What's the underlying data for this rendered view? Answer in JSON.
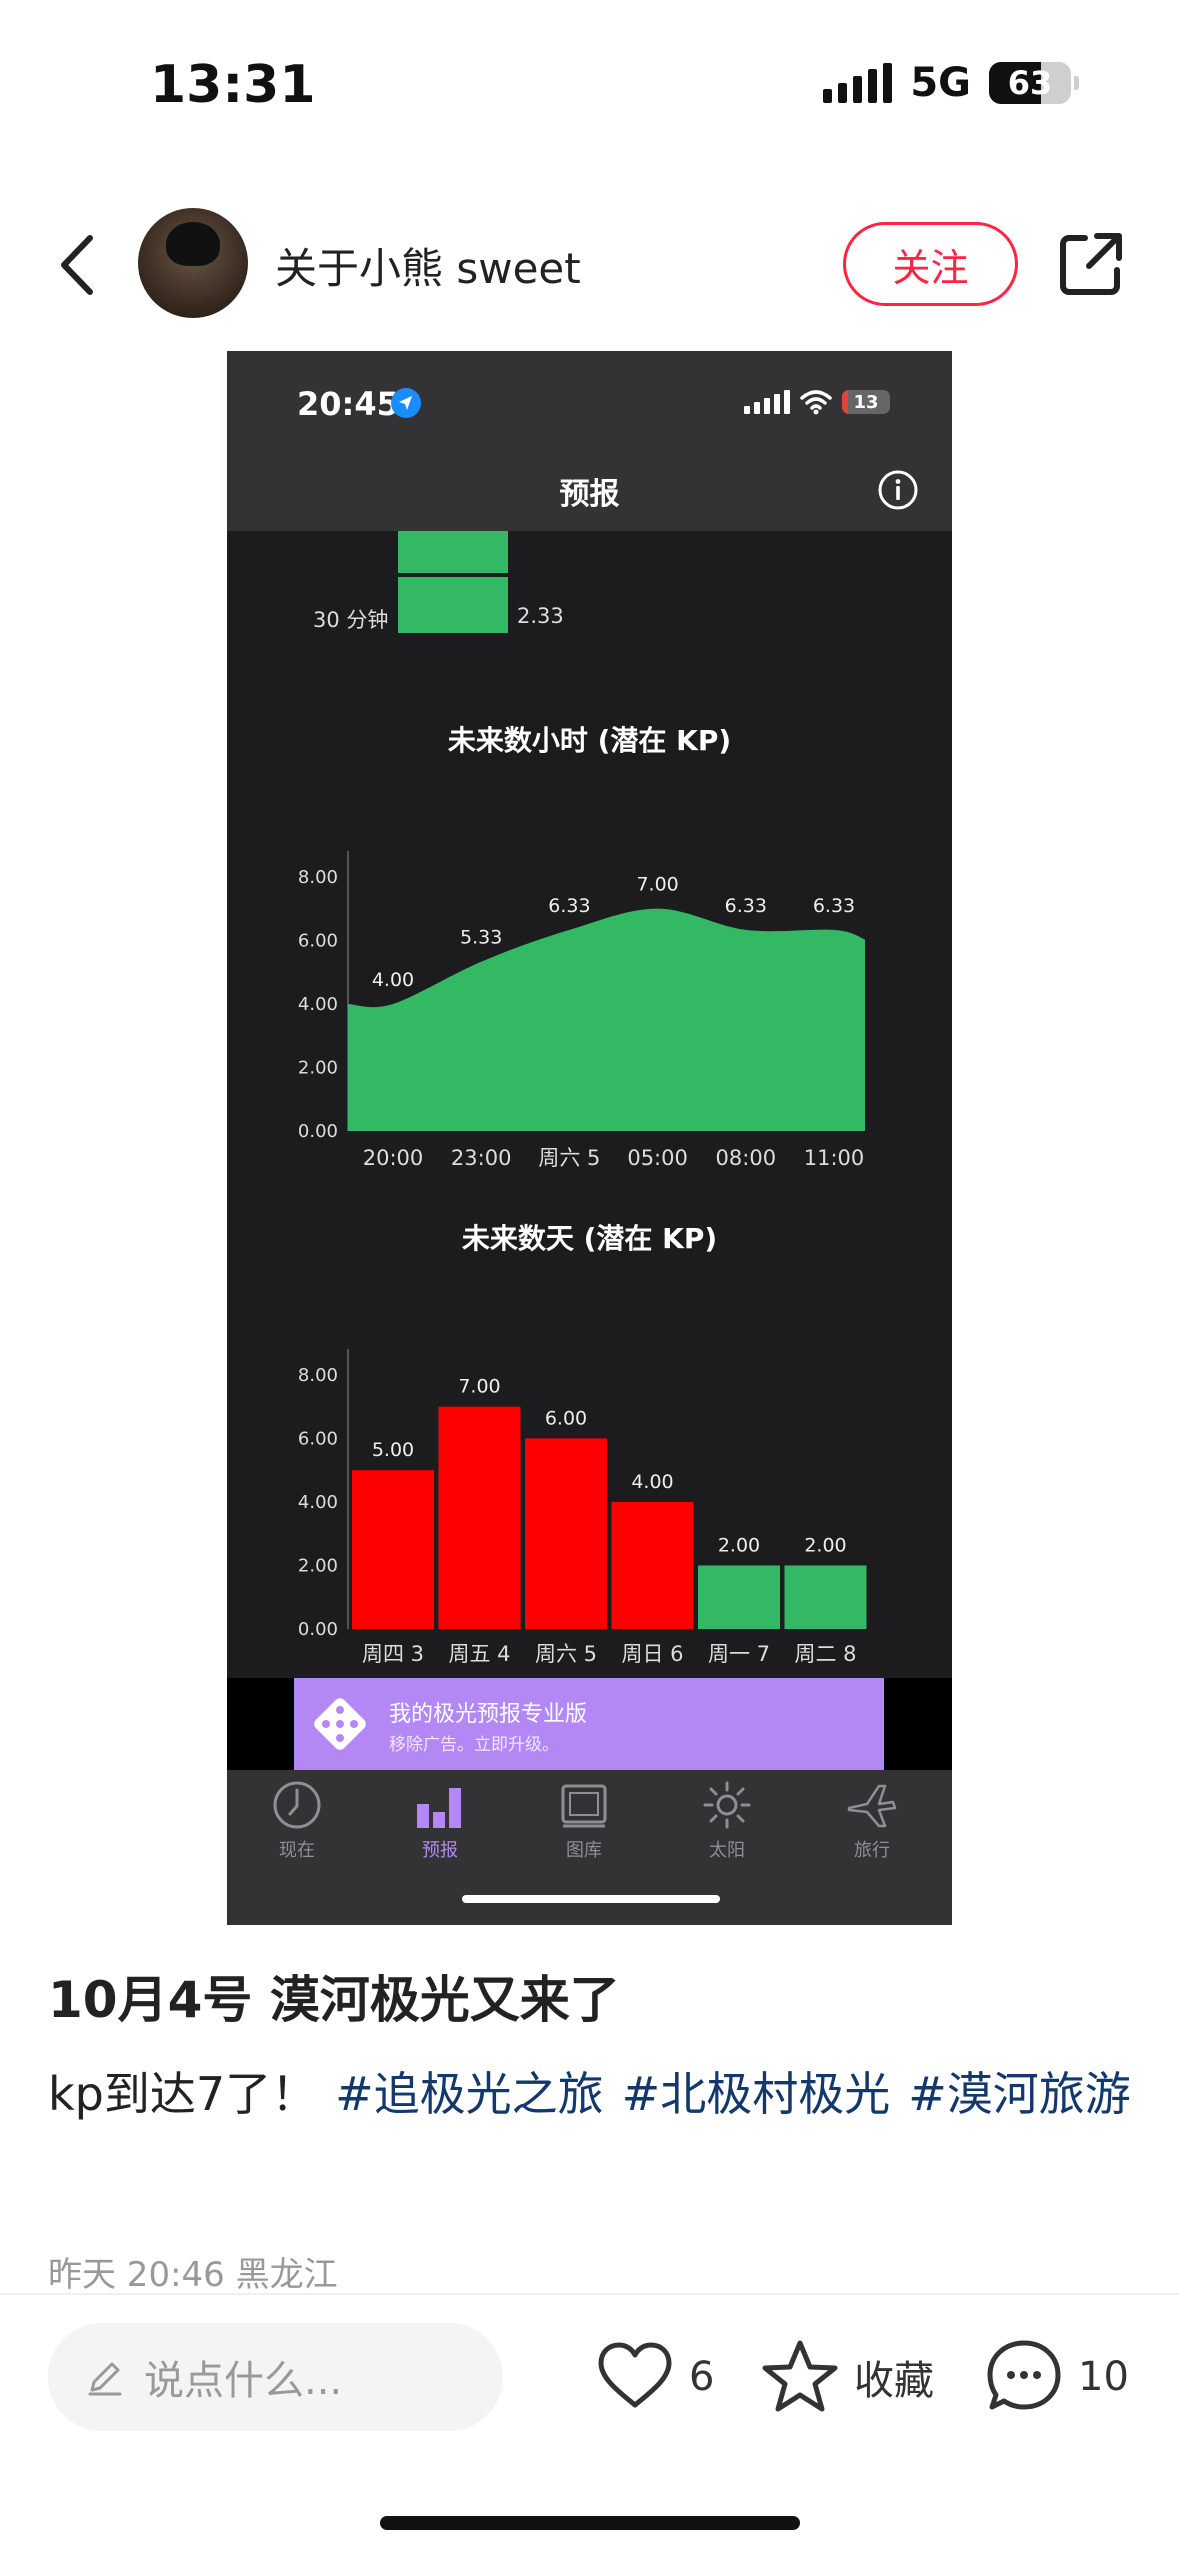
{
  "status_bar": {
    "time": "13:31",
    "network": "5G",
    "battery": "63",
    "battery_level": 0.63
  },
  "header": {
    "user_name": "关于小熊 sweet",
    "follow_label": "关注"
  },
  "screenshot": {
    "status_time": "20:45",
    "battery": "13",
    "battery_level": 0.13,
    "nav_title": "预报",
    "short_term": {
      "label": "30 分钟",
      "value": "2.33"
    },
    "hourly_chart": {
      "type": "area",
      "title": "未来数小时 (潜在 KP)",
      "x": [
        "20:00",
        "23:00",
        "周六 5",
        "05:00",
        "08:00",
        "11:00"
      ],
      "values": [
        4.0,
        5.33,
        6.33,
        7.0,
        6.33,
        6.33
      ],
      "value_labels": [
        "4.00",
        "5.33",
        "6.33",
        "7.00",
        "6.33",
        "6.33"
      ],
      "yticks": [
        "0.00",
        "2.00",
        "4.00",
        "6.00",
        "8.00"
      ],
      "ylim": [
        0,
        8.5
      ],
      "color": "#33b964"
    },
    "daily_chart": {
      "type": "bar",
      "title": "未来数天 (潜在 KP)",
      "categories": [
        "周四 3",
        "周五 4",
        "周六 5",
        "周日 6",
        "周一 7",
        "周二 8"
      ],
      "values": [
        5.0,
        7.0,
        6.0,
        4.0,
        2.0,
        2.0
      ],
      "value_labels": [
        "5.00",
        "7.00",
        "6.00",
        "4.00",
        "2.00",
        "2.00"
      ],
      "colors": [
        "#ff0000",
        "#ff0000",
        "#ff0000",
        "#ff0000",
        "#33b964",
        "#33b964"
      ],
      "yticks": [
        "0.00",
        "2.00",
        "4.00",
        "6.00",
        "8.00"
      ],
      "ylim": [
        0,
        8.5
      ]
    },
    "promo": {
      "title": "我的极光预报专业版",
      "subtitle": "移除广告。立即升级。"
    },
    "tabs": [
      {
        "label": "现在",
        "icon": "clock-icon"
      },
      {
        "label": "预报",
        "icon": "bar-chart-icon"
      },
      {
        "label": "图库",
        "icon": "gallery-icon"
      },
      {
        "label": "太阳",
        "icon": "sun-icon"
      },
      {
        "label": "旅行",
        "icon": "plane-icon"
      }
    ]
  },
  "post": {
    "title": "10月4号 漠河极光又来了",
    "body": "kp到达7了！",
    "tags": [
      "#追极光之旅",
      "#北极村极光",
      "#漠河旅游"
    ],
    "meta": "昨天 20:46 黑龙江"
  },
  "bottom_bar": {
    "comment_placeholder": "说点什么...",
    "likes": "6",
    "collect_label": "收藏",
    "comments": "10"
  },
  "colors": {
    "accent": "#ff2442",
    "tag": "#13386c",
    "tab_active": "#b388f5"
  }
}
